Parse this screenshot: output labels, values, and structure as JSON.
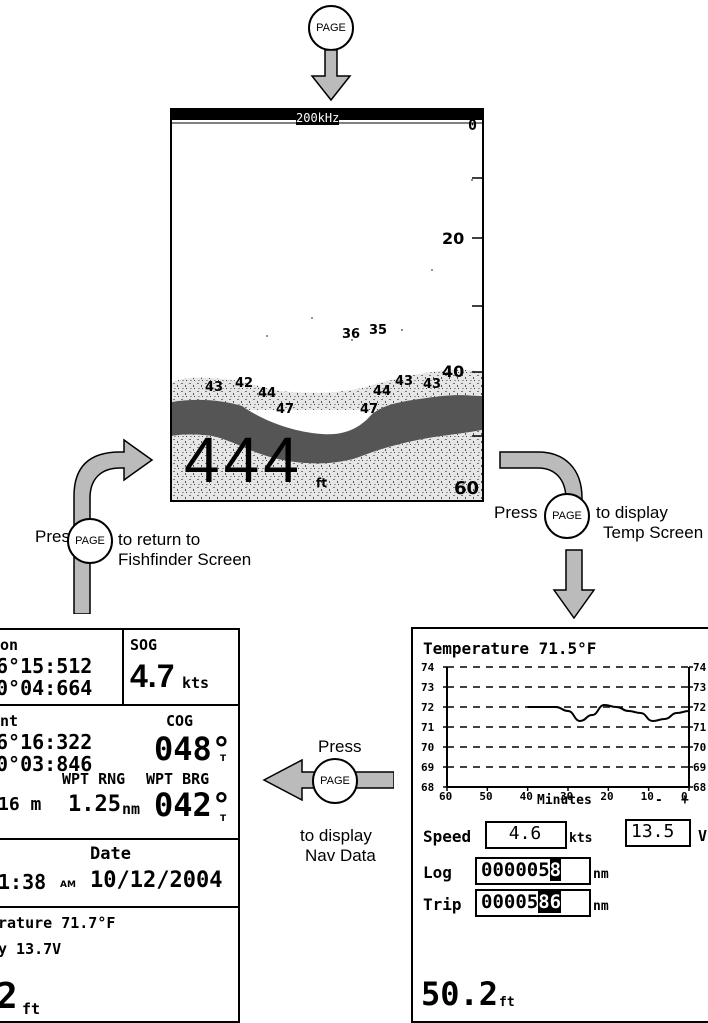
{
  "page_button_label": "PAGE",
  "captions": {
    "left_press": "Press",
    "left_return_line1": "to return to",
    "left_return_line2": "Fishfinder Screen",
    "right_press": "Press",
    "right_display_line1": "to display",
    "right_display_line2": "Temp Screen",
    "mid_press": "Press",
    "mid_display_line1": "to display",
    "mid_display_line2": "Nav Data"
  },
  "fishfinder": {
    "frequency": "200kHz",
    "top_depth": "0",
    "scale_20": "20",
    "scale_40": "40",
    "bottom_depth": "60",
    "depth_value": "444",
    "depth_unit": "ft",
    "fish_labels": [
      "36",
      "35",
      "43",
      "42",
      "44",
      "47",
      "47",
      "44",
      "43",
      "43"
    ]
  },
  "nav": {
    "position_label": "on",
    "pos_lat": "6°15:512",
    "pos_lon": "0°04:664",
    "sog_label": "SOG",
    "sog_value": "4.7",
    "sog_unit": "kts",
    "waypoint_label": "nt",
    "wpt_lat": "6°16:322",
    "wpt_lon": "0°03:846",
    "cog_label": "COG",
    "cog_value": "048°",
    "cog_suffix": "T",
    "wpt_rng_label": "WPT RNG",
    "xte_value": "16 m",
    "rng_value": "1.25",
    "rng_unit": "nm",
    "wpt_brg_label": "WPT BRG",
    "brg_value": "042°",
    "brg_suffix": "T",
    "date_label": "Date",
    "time_value": "1:38",
    "time_ampm": "AM",
    "date_value": "10/12/2004",
    "temp_label": "rature  71.7°F",
    "battery_label": "y  13.7V",
    "depth_value": "2",
    "depth_unit": "ft"
  },
  "temp_screen": {
    "title": "Temperature  71.5°F",
    "y_ticks_left": [
      "74",
      "73",
      "72",
      "71",
      "70",
      "69",
      "68"
    ],
    "y_ticks_right": [
      "74",
      "73",
      "72",
      "71",
      "70",
      "69",
      "68"
    ],
    "x_ticks": [
      "60",
      "50",
      "40",
      "30",
      "20",
      "10",
      "0"
    ],
    "x_label": "Minutes",
    "minus": "-",
    "plus": "+",
    "speed_label": "Speed",
    "speed_value": "4.6",
    "speed_unit": "kts",
    "voltage_value": "13.5",
    "voltage_unit": "V",
    "log_label": "Log",
    "log_value_plain": "000005",
    "log_value_inv": "8",
    "log_unit": "nm",
    "trip_label": "Trip",
    "trip_value_plain": "00005",
    "trip_value_inv": "86",
    "trip_unit": "nm",
    "depth_value": "50.2",
    "depth_unit": "ft"
  },
  "chart_data": {
    "type": "line",
    "xlabel": "Minutes",
    "xlim": [
      60,
      0
    ],
    "ylim": [
      68,
      74
    ],
    "grid": true,
    "series": [
      {
        "x": [
          40,
          36,
          33,
          30,
          27,
          24,
          21,
          18,
          15,
          12,
          9,
          6,
          3,
          0
        ],
        "values": [
          72.0,
          72.0,
          72.0,
          71.8,
          71.3,
          71.6,
          72.1,
          72.0,
          71.8,
          71.7,
          71.3,
          71.4,
          71.7,
          71.8
        ]
      }
    ]
  }
}
